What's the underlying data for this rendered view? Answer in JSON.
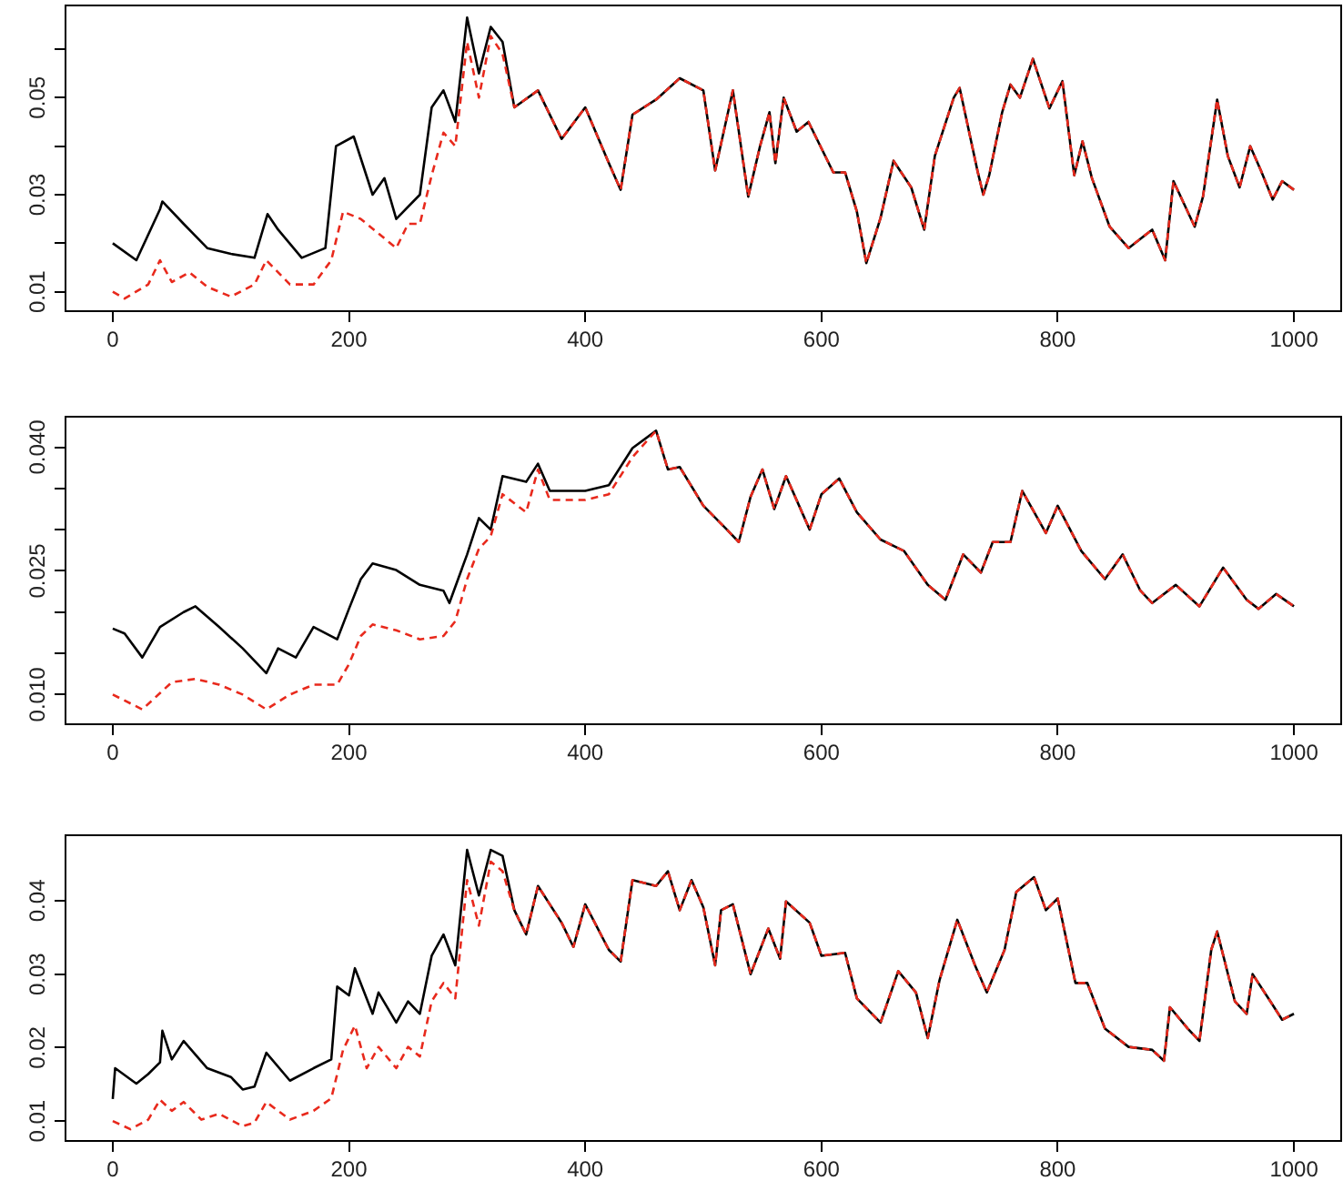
{
  "chart_data": [
    {
      "type": "line",
      "xlim": [
        -40,
        1040
      ],
      "xticks": [
        0,
        200,
        400,
        600,
        800,
        1000
      ],
      "ylim": [
        0.006,
        0.069
      ],
      "yticks": [
        0.01,
        {
          "value": 0.02,
          "label": null
        },
        0.03,
        {
          "value": 0.04,
          "label": null
        },
        0.05,
        {
          "value": 0.06,
          "label": null
        }
      ],
      "grid": false,
      "legend": false,
      "series": [
        {
          "color": "#000000",
          "line_style": "solid",
          "x": [
            0,
            20,
            40,
            42,
            60,
            80,
            100,
            120,
            131,
            140,
            160,
            180,
            189,
            204,
            220,
            230,
            240,
            260,
            270,
            280,
            290,
            300,
            310,
            320,
            330,
            340,
            360,
            380,
            400,
            420,
            430,
            440,
            460,
            480,
            500,
            510,
            525,
            538,
            548,
            556,
            561,
            568,
            579,
            589,
            610,
            620,
            630,
            638,
            650,
            661,
            676,
            687,
            696,
            712,
            717,
            732,
            737,
            742,
            753,
            760,
            768,
            779,
            793,
            804,
            814,
            821,
            829,
            844,
            860,
            880,
            891,
            898,
            916,
            923,
            935,
            944,
            954,
            963,
            972,
            982,
            990,
            1000
          ],
          "values": [
            0.02,
            0.0165,
            0.027,
            0.0286,
            0.024,
            0.019,
            0.0178,
            0.017,
            0.026,
            0.0228,
            0.017,
            0.019,
            0.04,
            0.042,
            0.03,
            0.0334,
            0.025,
            0.03,
            0.048,
            0.0515,
            0.045,
            0.0665,
            0.055,
            0.0646,
            0.0615,
            0.048,
            0.0515,
            0.0415,
            0.048,
            0.0365,
            0.031,
            0.0465,
            0.0496,
            0.054,
            0.0515,
            0.035,
            0.0515,
            0.0296,
            0.04,
            0.047,
            0.0365,
            0.05,
            0.043,
            0.045,
            0.0346,
            0.0346,
            0.0265,
            0.0159,
            0.0252,
            0.037,
            0.0315,
            0.0228,
            0.038,
            0.05,
            0.052,
            0.035,
            0.03,
            0.034,
            0.047,
            0.0527,
            0.05,
            0.058,
            0.0478,
            0.0534,
            0.034,
            0.041,
            0.0334,
            0.0234,
            0.019,
            0.0228,
            0.0165,
            0.0328,
            0.0234,
            0.0296,
            0.0496,
            0.038,
            0.0315,
            0.04,
            0.035,
            0.029,
            0.0328,
            0.031
          ]
        },
        {
          "color": "#e8291c",
          "line_style": "dashed",
          "x": [
            0,
            10,
            30,
            40,
            50,
            65,
            80,
            100,
            120,
            130,
            150,
            170,
            185,
            195,
            210,
            230,
            240,
            250,
            260,
            270,
            280,
            290,
            300,
            310,
            320,
            330,
            340,
            360,
            380,
            400,
            420,
            430,
            440,
            460,
            480,
            500,
            510,
            525,
            538,
            548,
            556,
            561,
            568,
            579,
            589,
            610,
            620,
            630,
            638,
            650,
            661,
            676,
            687,
            696,
            712,
            717,
            732,
            737,
            742,
            753,
            760,
            768,
            779,
            793,
            804,
            814,
            821,
            829,
            844,
            860,
            880,
            891,
            898,
            916,
            923,
            935,
            944,
            954,
            963,
            972,
            982,
            990,
            1000
          ],
          "values": [
            0.01,
            0.0086,
            0.0115,
            0.0165,
            0.012,
            0.014,
            0.011,
            0.009,
            0.0115,
            0.0165,
            0.0115,
            0.0115,
            0.0165,
            0.0265,
            0.025,
            0.021,
            0.019,
            0.024,
            0.024,
            0.034,
            0.0428,
            0.04,
            0.0615,
            0.05,
            0.0627,
            0.059,
            0.048,
            0.0515,
            0.0415,
            0.048,
            0.0365,
            0.031,
            0.0465,
            0.0496,
            0.054,
            0.0515,
            0.035,
            0.0515,
            0.0296,
            0.04,
            0.047,
            0.0365,
            0.05,
            0.043,
            0.045,
            0.0346,
            0.0346,
            0.0265,
            0.0159,
            0.0252,
            0.037,
            0.0315,
            0.0228,
            0.038,
            0.05,
            0.052,
            0.035,
            0.03,
            0.034,
            0.047,
            0.0527,
            0.05,
            0.058,
            0.0478,
            0.0534,
            0.034,
            0.041,
            0.0334,
            0.0234,
            0.019,
            0.0228,
            0.0165,
            0.0328,
            0.0234,
            0.0296,
            0.0496,
            0.038,
            0.0315,
            0.04,
            0.035,
            0.029,
            0.0328,
            0.031
          ]
        }
      ]
    },
    {
      "type": "line",
      "xlim": [
        -40,
        1040
      ],
      "xticks": [
        0,
        200,
        400,
        600,
        800,
        1000
      ],
      "ylim": [
        0.0064,
        0.0437
      ],
      "yticks": [
        {
          "value": 0.01,
          "label": "0.010"
        },
        {
          "value": 0.015,
          "label": null
        },
        {
          "value": 0.02,
          "label": null
        },
        0.025,
        {
          "value": 0.03,
          "label": null
        },
        {
          "value": 0.035,
          "label": null
        },
        {
          "value": 0.04,
          "label": "0.040"
        }
      ],
      "grid": false,
      "legend": false,
      "series": [
        {
          "color": "#000000",
          "line_style": "solid",
          "x": [
            0,
            10,
            25,
            40,
            60,
            70,
            90,
            110,
            130,
            140,
            155,
            170,
            190,
            200,
            210,
            220,
            240,
            260,
            280,
            285,
            300,
            310,
            320,
            330,
            350,
            360,
            370,
            400,
            420,
            440,
            460,
            470,
            480,
            500,
            520,
            530,
            540,
            550,
            560,
            570,
            590,
            600,
            615,
            630,
            650,
            670,
            690,
            705,
            720,
            735,
            745,
            760,
            770,
            790,
            800,
            820,
            840,
            855,
            870,
            880,
            900,
            920,
            940,
            960,
            970,
            985,
            1000
          ],
          "values": [
            0.018,
            0.0174,
            0.0145,
            0.0182,
            0.02,
            0.0207,
            0.0182,
            0.0156,
            0.0126,
            0.0156,
            0.0145,
            0.0182,
            0.0167,
            0.0204,
            0.024,
            0.0259,
            0.0251,
            0.0233,
            0.0226,
            0.0211,
            0.027,
            0.0314,
            0.03,
            0.0365,
            0.0358,
            0.038,
            0.0347,
            0.0347,
            0.0354,
            0.0399,
            0.042,
            0.0373,
            0.0376,
            0.0329,
            0.03,
            0.0285,
            0.034,
            0.0373,
            0.0325,
            0.0365,
            0.03,
            0.0343,
            0.0362,
            0.0321,
            0.0288,
            0.0274,
            0.0233,
            0.0215,
            0.027,
            0.0248,
            0.0285,
            0.0285,
            0.0347,
            0.0296,
            0.0329,
            0.0274,
            0.024,
            0.027,
            0.0226,
            0.0211,
            0.0233,
            0.0207,
            0.0254,
            0.0215,
            0.0204,
            0.0222,
            0.0207
          ]
        },
        {
          "color": "#e8291c",
          "line_style": "dashed",
          "x": [
            0,
            25,
            50,
            70,
            90,
            110,
            130,
            150,
            170,
            190,
            200,
            210,
            220,
            240,
            260,
            280,
            290,
            300,
            310,
            320,
            330,
            350,
            360,
            370,
            400,
            420,
            440,
            460,
            470,
            480,
            500,
            520,
            530,
            540,
            550,
            560,
            570,
            590,
            600,
            615,
            630,
            650,
            670,
            690,
            705,
            720,
            735,
            745,
            760,
            770,
            790,
            800,
            820,
            840,
            855,
            870,
            880,
            900,
            920,
            940,
            960,
            970,
            985,
            1000
          ],
          "values": [
            0.01,
            0.0082,
            0.0115,
            0.0119,
            0.0112,
            0.01,
            0.0082,
            0.01,
            0.0112,
            0.0112,
            0.0137,
            0.0171,
            0.0185,
            0.0178,
            0.0167,
            0.0171,
            0.0189,
            0.024,
            0.0277,
            0.0292,
            0.0343,
            0.0321,
            0.0373,
            0.0336,
            0.0336,
            0.0343,
            0.0388,
            0.042,
            0.0373,
            0.0376,
            0.0329,
            0.03,
            0.0285,
            0.034,
            0.0373,
            0.0325,
            0.0365,
            0.03,
            0.0343,
            0.0362,
            0.0321,
            0.0288,
            0.0274,
            0.0233,
            0.0215,
            0.027,
            0.0248,
            0.0285,
            0.0285,
            0.0347,
            0.0296,
            0.0329,
            0.0274,
            0.024,
            0.027,
            0.0226,
            0.0211,
            0.0233,
            0.0207,
            0.0254,
            0.0215,
            0.0204,
            0.0222,
            0.0207
          ]
        }
      ]
    },
    {
      "type": "line",
      "xlim": [
        -40,
        1040
      ],
      "xticks": [
        0,
        200,
        400,
        600,
        800,
        1000
      ],
      "ylim": [
        0.0073,
        0.0489
      ],
      "yticks": [
        0.01,
        0.02,
        0.03,
        0.04
      ],
      "grid": false,
      "legend": false,
      "series": [
        {
          "color": "#000000",
          "line_style": "solid",
          "x": [
            0,
            2,
            20,
            30,
            40,
            42,
            50,
            60,
            80,
            100,
            110,
            120,
            130,
            150,
            170,
            185,
            190,
            200,
            205,
            220,
            225,
            240,
            250,
            260,
            270,
            280,
            290,
            300,
            310,
            320,
            330,
            340,
            350,
            360,
            380,
            390,
            400,
            420,
            430,
            440,
            460,
            470,
            480,
            490,
            500,
            510,
            515,
            525,
            540,
            555,
            565,
            570,
            590,
            600,
            620,
            630,
            650,
            665,
            680,
            690,
            700,
            715,
            730,
            740,
            755,
            765,
            780,
            790,
            800,
            815,
            825,
            840,
            860,
            880,
            890,
            895,
            910,
            920,
            930,
            935,
            950,
            960,
            965,
            980,
            990,
            1000
          ],
          "values": [
            0.013,
            0.0172,
            0.0151,
            0.0164,
            0.018,
            0.0223,
            0.0184,
            0.0209,
            0.0172,
            0.016,
            0.0143,
            0.0147,
            0.0193,
            0.0155,
            0.0172,
            0.0184,
            0.0283,
            0.0271,
            0.0308,
            0.0246,
            0.0275,
            0.0234,
            0.0263,
            0.0246,
            0.0325,
            0.0354,
            0.0312,
            0.0469,
            0.0407,
            0.0469,
            0.0461,
            0.0387,
            0.0354,
            0.042,
            0.037,
            0.0337,
            0.0395,
            0.0333,
            0.0317,
            0.0428,
            0.042,
            0.044,
            0.0387,
            0.0428,
            0.0391,
            0.0312,
            0.0387,
            0.0395,
            0.03,
            0.0362,
            0.0321,
            0.0399,
            0.037,
            0.0325,
            0.0329,
            0.0267,
            0.0234,
            0.0304,
            0.0275,
            0.0213,
            0.0292,
            0.0374,
            0.0312,
            0.0275,
            0.0333,
            0.0412,
            0.0432,
            0.0387,
            0.0403,
            0.0288,
            0.0288,
            0.0226,
            0.0201,
            0.0197,
            0.0182,
            0.0255,
            0.0226,
            0.0209,
            0.0333,
            0.0358,
            0.0263,
            0.0246,
            0.03,
            0.0263,
            0.0238,
            0.0246
          ]
        },
        {
          "color": "#e8291c",
          "line_style": "dashed",
          "x": [
            0,
            15,
            30,
            40,
            50,
            60,
            75,
            90,
            110,
            120,
            130,
            150,
            170,
            185,
            195,
            205,
            215,
            225,
            240,
            250,
            260,
            270,
            280,
            290,
            300,
            310,
            320,
            330,
            340,
            350,
            360,
            380,
            390,
            400,
            420,
            430,
            440,
            460,
            470,
            480,
            490,
            500,
            510,
            515,
            525,
            540,
            555,
            565,
            570,
            590,
            600,
            620,
            630,
            650,
            665,
            680,
            690,
            700,
            715,
            730,
            740,
            755,
            765,
            780,
            790,
            800,
            815,
            825,
            840,
            860,
            880,
            890,
            895,
            910,
            920,
            930,
            935,
            950,
            960,
            965,
            980,
            990,
            1000
          ],
          "values": [
            0.01,
            0.0089,
            0.0102,
            0.0129,
            0.0114,
            0.0126,
            0.0102,
            0.011,
            0.0093,
            0.0098,
            0.0126,
            0.0102,
            0.0114,
            0.0131,
            0.0197,
            0.023,
            0.0172,
            0.0201,
            0.0172,
            0.0201,
            0.0188,
            0.0263,
            0.0288,
            0.0267,
            0.0428,
            0.0366,
            0.0453,
            0.044,
            0.0387,
            0.0354,
            0.042,
            0.037,
            0.0337,
            0.0395,
            0.0333,
            0.0317,
            0.0428,
            0.042,
            0.044,
            0.0387,
            0.0428,
            0.0391,
            0.0312,
            0.0387,
            0.0395,
            0.03,
            0.0362,
            0.0321,
            0.0399,
            0.037,
            0.0325,
            0.0329,
            0.0267,
            0.0234,
            0.0304,
            0.0275,
            0.0213,
            0.0292,
            0.0374,
            0.0312,
            0.0275,
            0.0333,
            0.0412,
            0.0432,
            0.0387,
            0.0403,
            0.0288,
            0.0288,
            0.0226,
            0.0201,
            0.0197,
            0.0182,
            0.0255,
            0.0226,
            0.0209,
            0.0333,
            0.0358,
            0.0263,
            0.0246,
            0.03,
            0.0263,
            0.0238,
            0.0246
          ]
        }
      ]
    }
  ]
}
